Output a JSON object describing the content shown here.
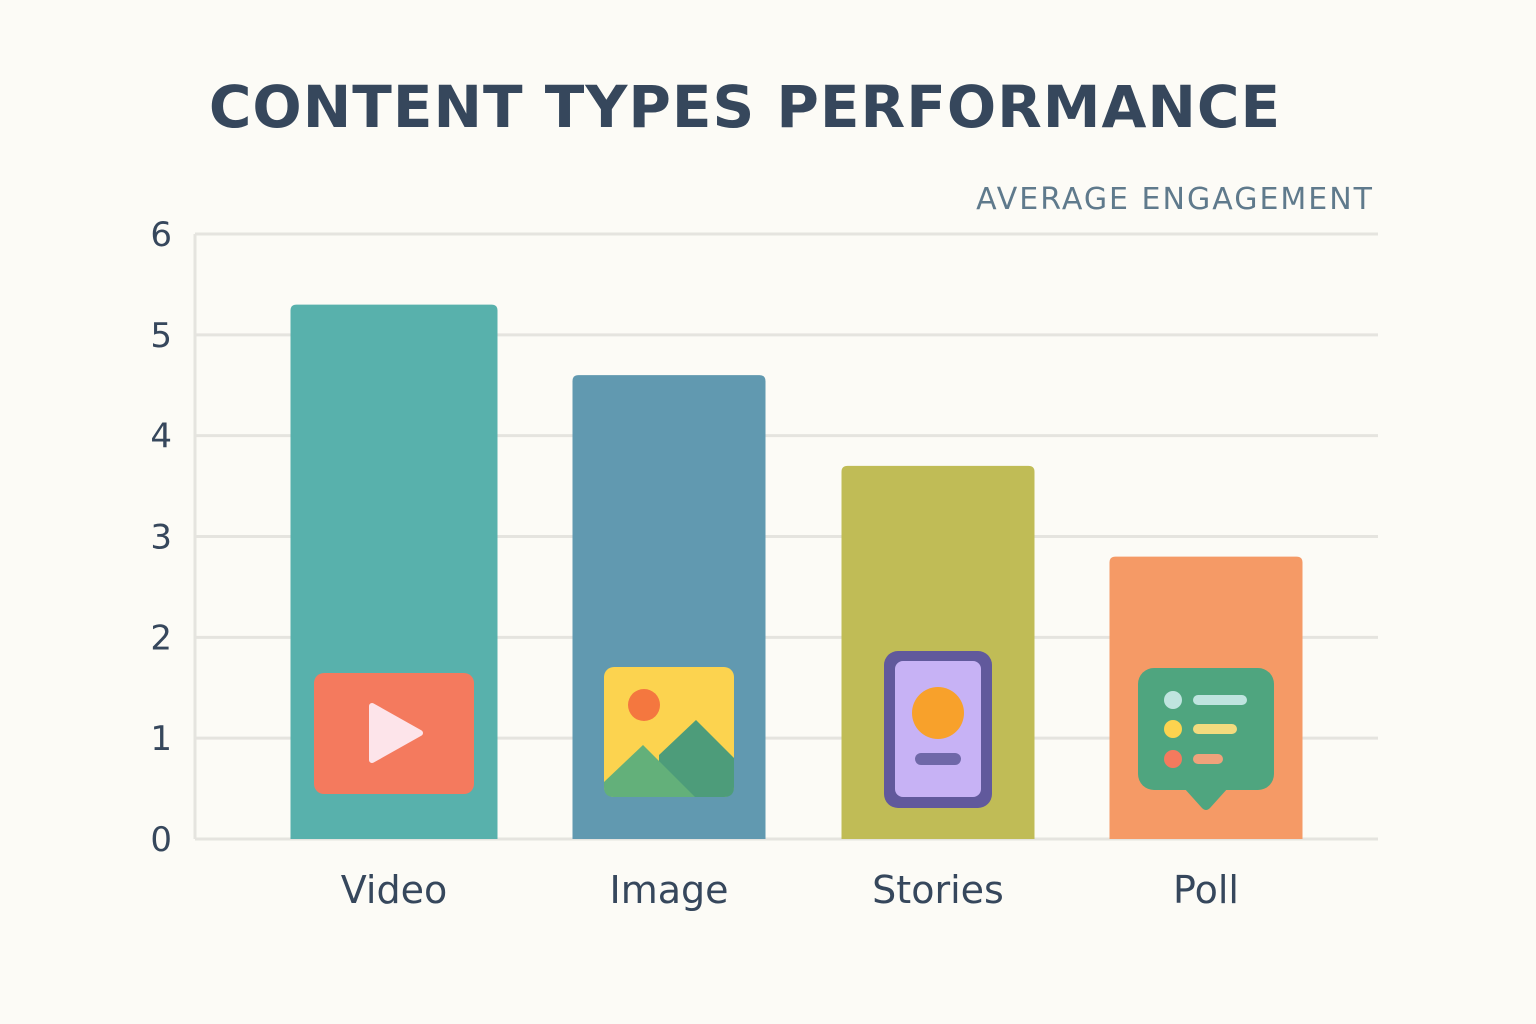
{
  "chart_data": {
    "type": "bar",
    "title": "CONTENT TYPES PERFORMANCE",
    "ylabel": "AVERAGE ENGAGEMENT",
    "xlabel": "",
    "categories": [
      "Video",
      "Image",
      "Stories",
      "Poll"
    ],
    "values": [
      5.3,
      4.6,
      3.7,
      2.8
    ],
    "ylim": [
      0,
      6
    ],
    "yticks": [
      0,
      1,
      2,
      3,
      4,
      5,
      6
    ],
    "grid": true,
    "bar_colors": [
      "#58b1ac",
      "#6199b0",
      "#c0bc56",
      "#f59a66"
    ],
    "bar_icons": [
      "video-play-icon",
      "image-landscape-icon",
      "stories-phone-icon",
      "poll-chat-icon"
    ]
  },
  "colors": {
    "background": "#fcfbf6",
    "title": "#36475c",
    "ylabel": "#5f7a8c",
    "tick_text": "#36475c",
    "grid": "#e5e4df"
  }
}
